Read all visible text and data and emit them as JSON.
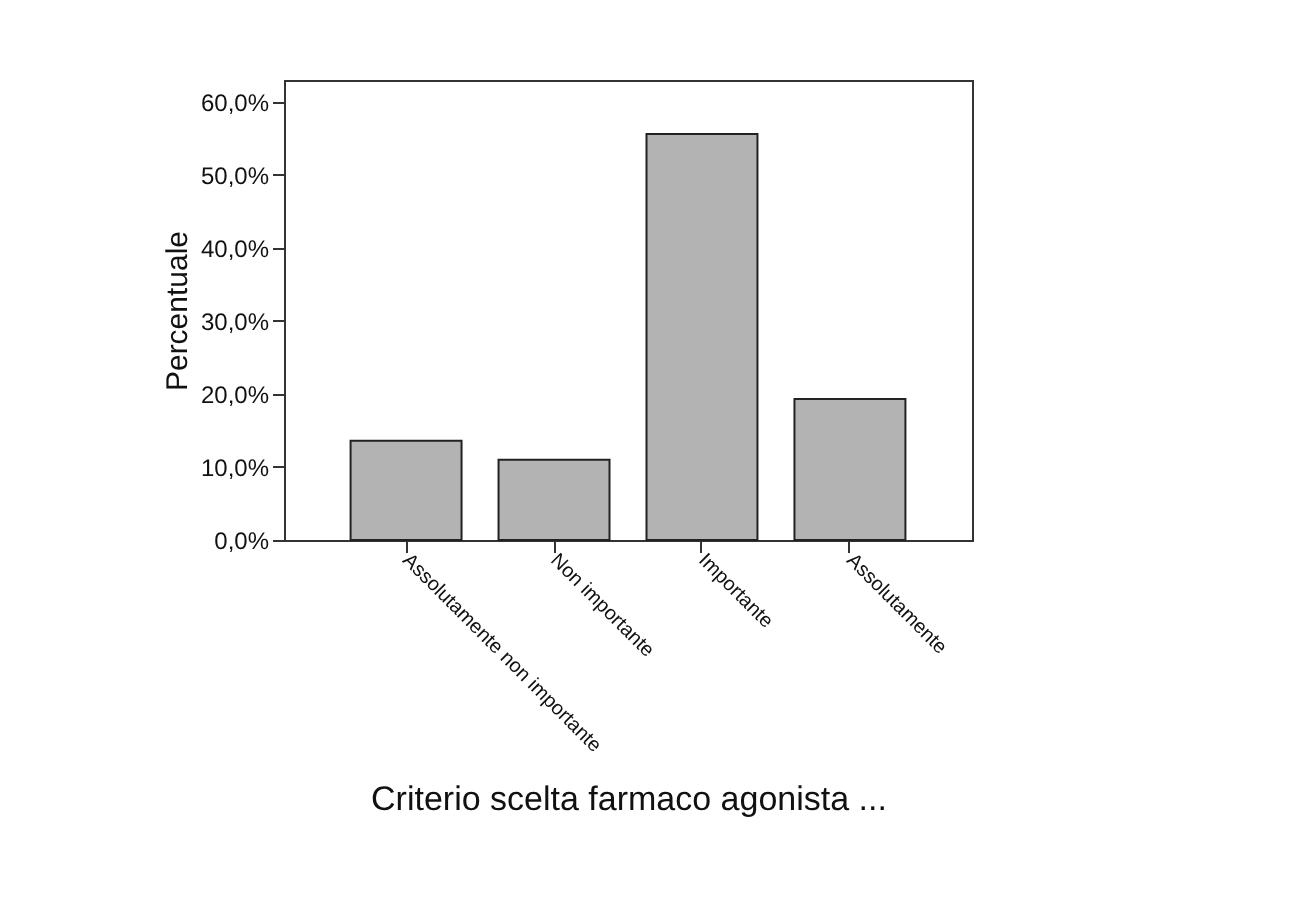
{
  "chart_data": {
    "type": "bar",
    "xlabel": "Criterio scelta farmaco agonista ...",
    "ylabel": "Percentuale",
    "categories": [
      "Assolutamente non importante",
      "Non importante",
      "Importante",
      "Assolutamente"
    ],
    "values": [
      13.6,
      11.0,
      55.6,
      19.3
    ],
    "color": "#b3b3b3",
    "ylim": [
      0,
      63
    ],
    "yticks": [
      {
        "value": 0,
        "label": "0,0%"
      },
      {
        "value": 10,
        "label": "10,0%"
      },
      {
        "value": 20,
        "label": "20,0%"
      },
      {
        "value": 30,
        "label": "30,0%"
      },
      {
        "value": 40,
        "label": "40,0%"
      },
      {
        "value": 50,
        "label": "50,0%"
      },
      {
        "value": 60,
        "label": "60,0%"
      }
    ],
    "grid": false
  }
}
